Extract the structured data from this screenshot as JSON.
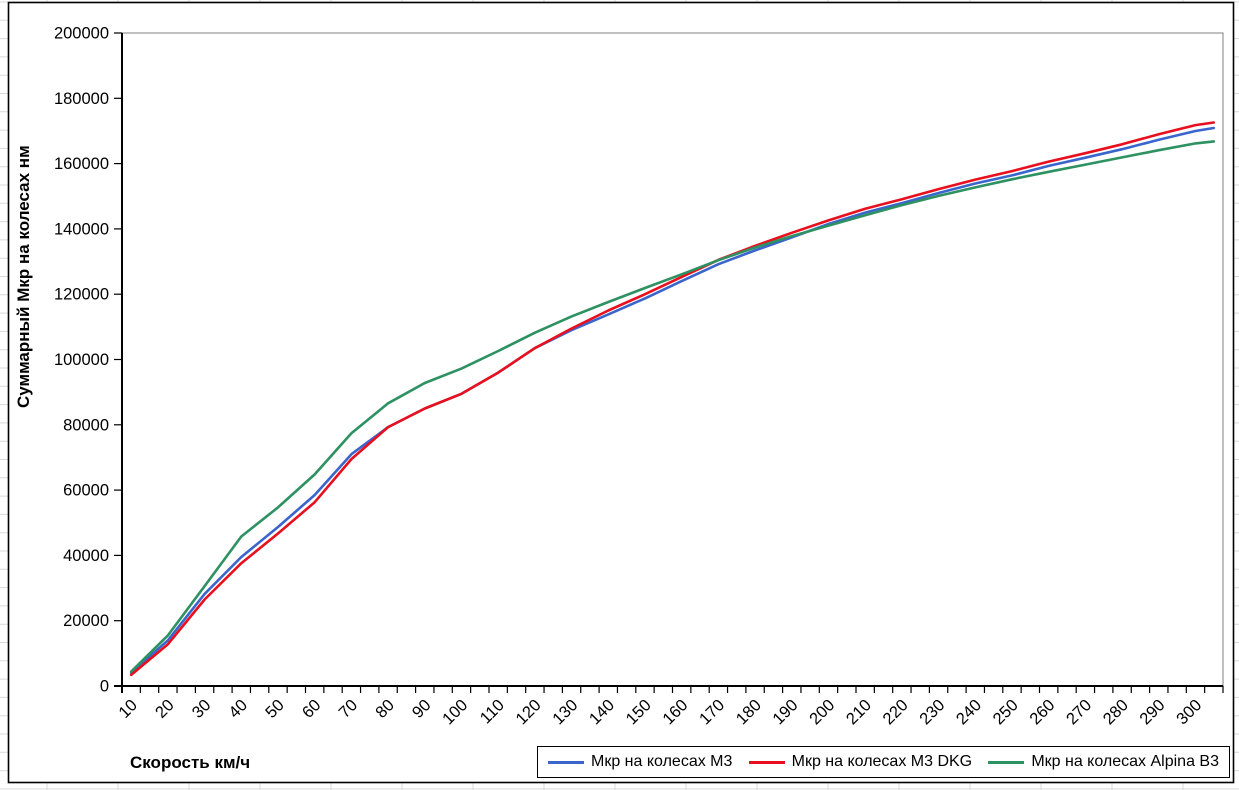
{
  "chart_data": {
    "type": "line",
    "title": "",
    "xlabel": "Скорость км/ч",
    "ylabel": "Суммарный Мкр на колесах нм",
    "x": [
      10,
      20,
      30,
      40,
      50,
      60,
      70,
      80,
      90,
      100,
      110,
      120,
      130,
      140,
      150,
      160,
      170,
      180,
      190,
      200,
      210,
      220,
      230,
      240,
      250,
      260,
      270,
      280,
      290,
      300,
      305
    ],
    "series": [
      {
        "name": "Мкр на колесах М3",
        "color": "#3A65CC",
        "values": [
          4000,
          14000,
          28200,
          39500,
          48700,
          58500,
          71000,
          79300,
          85000,
          89500,
          96000,
          103500,
          109000,
          113800,
          118700,
          124000,
          129200,
          133400,
          137400,
          141500,
          145000,
          147900,
          151000,
          153900,
          156400,
          159300,
          161800,
          164400,
          167300,
          170000,
          170900
        ]
      },
      {
        "name": "Мкр на колесах М3 DKG",
        "color": "#E8101E",
        "values": [
          3400,
          12800,
          26500,
          37600,
          46700,
          56300,
          69500,
          79300,
          85000,
          89500,
          96000,
          103500,
          109500,
          115000,
          120000,
          125300,
          130500,
          134800,
          138800,
          142600,
          146200,
          149100,
          152200,
          155100,
          157700,
          160600,
          163200,
          165900,
          169000,
          171800,
          172600
        ]
      },
      {
        "name": "Мкр на колесах Alpina B3",
        "color": "#2E9162",
        "values": [
          4400,
          15500,
          30600,
          45800,
          54700,
          64800,
          77400,
          86600,
          92800,
          97200,
          102600,
          108200,
          113200,
          117600,
          121900,
          126100,
          130400,
          134300,
          137800,
          141000,
          144200,
          147300,
          150100,
          152700,
          155200,
          157500,
          159700,
          161900,
          164100,
          166200,
          166800
        ]
      }
    ],
    "ylim": [
      0,
      200000
    ],
    "ytick_step": 20000,
    "x_axis_range": [
      10,
      305
    ],
    "x_category_step": 5,
    "xtick_label_step": 10,
    "x_tick_label_rotation": -45,
    "grid": false,
    "legend_position": "bottom"
  },
  "colors": {
    "axis": "#000000",
    "plot_border": "#808080",
    "chart_border": "#000000",
    "worksheet_grid": "#d9d9d9",
    "background": "#ffffff",
    "text": "#000000"
  }
}
